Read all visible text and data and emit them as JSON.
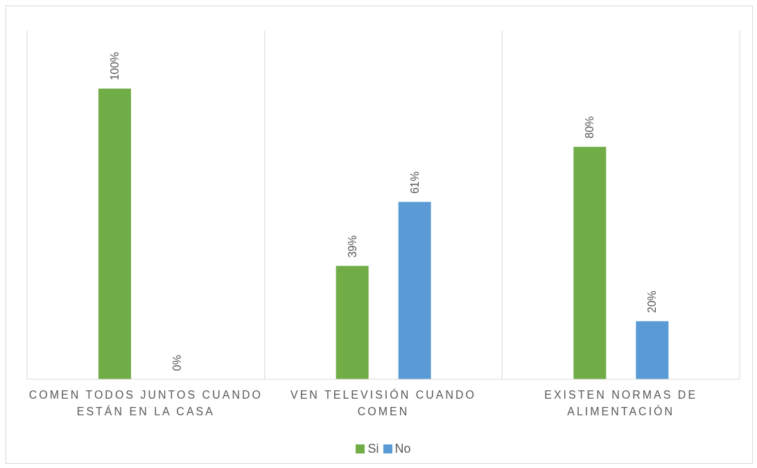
{
  "chart_data": {
    "type": "bar",
    "categories": [
      "COMEN TODOS JUNTOS CUANDO ESTÁN EN LA CASA",
      "VEN TELEVISIÓN CUANDO COMEN",
      "EXISTEN NORMAS DE ALIMENTACIÓN"
    ],
    "series": [
      {
        "name": "Si",
        "color": "#70ad47",
        "values": [
          100,
          39,
          80
        ],
        "value_labels": [
          "100%",
          "39%",
          "80%"
        ]
      },
      {
        "name": "No",
        "color": "#5b9bd5",
        "values": [
          0,
          61,
          20
        ],
        "value_labels": [
          "0%",
          "61%",
          "20%"
        ]
      }
    ],
    "grid": "x",
    "legend": "bottom"
  }
}
